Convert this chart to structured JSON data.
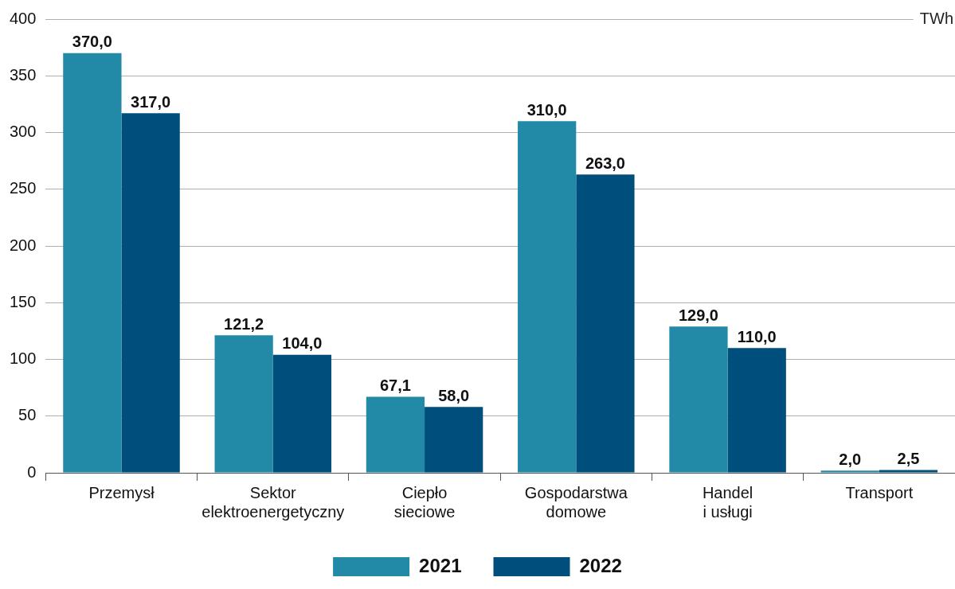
{
  "chart_data": {
    "type": "bar",
    "ylabel": "TWh",
    "categories": [
      "Przemysł",
      "Sektor\nelektroenergetyczny",
      "Ciepło\nsieciowe",
      "Gospodarstwa\ndomowe",
      "Handel\ni usługi",
      "Transport"
    ],
    "series": [
      {
        "name": "2021",
        "color": "#2289a6",
        "values": [
          370.0,
          121.2,
          67.1,
          310.0,
          129.0,
          2.0
        ],
        "value_labels": [
          "370,0",
          "121,2",
          "67,1",
          "310,0",
          "129,0",
          "2,0"
        ]
      },
      {
        "name": "2022",
        "color": "#004e7c",
        "values": [
          317.0,
          104.0,
          58.0,
          263.0,
          110.0,
          2.5
        ],
        "value_labels": [
          "317,0",
          "104,0",
          "58,0",
          "263,0",
          "110,0",
          "2,5"
        ]
      }
    ],
    "ylim": [
      0,
      400
    ],
    "yticks": [
      0,
      50,
      100,
      150,
      200,
      250,
      300,
      350,
      400
    ],
    "grid": "y",
    "legend": "bottom"
  }
}
